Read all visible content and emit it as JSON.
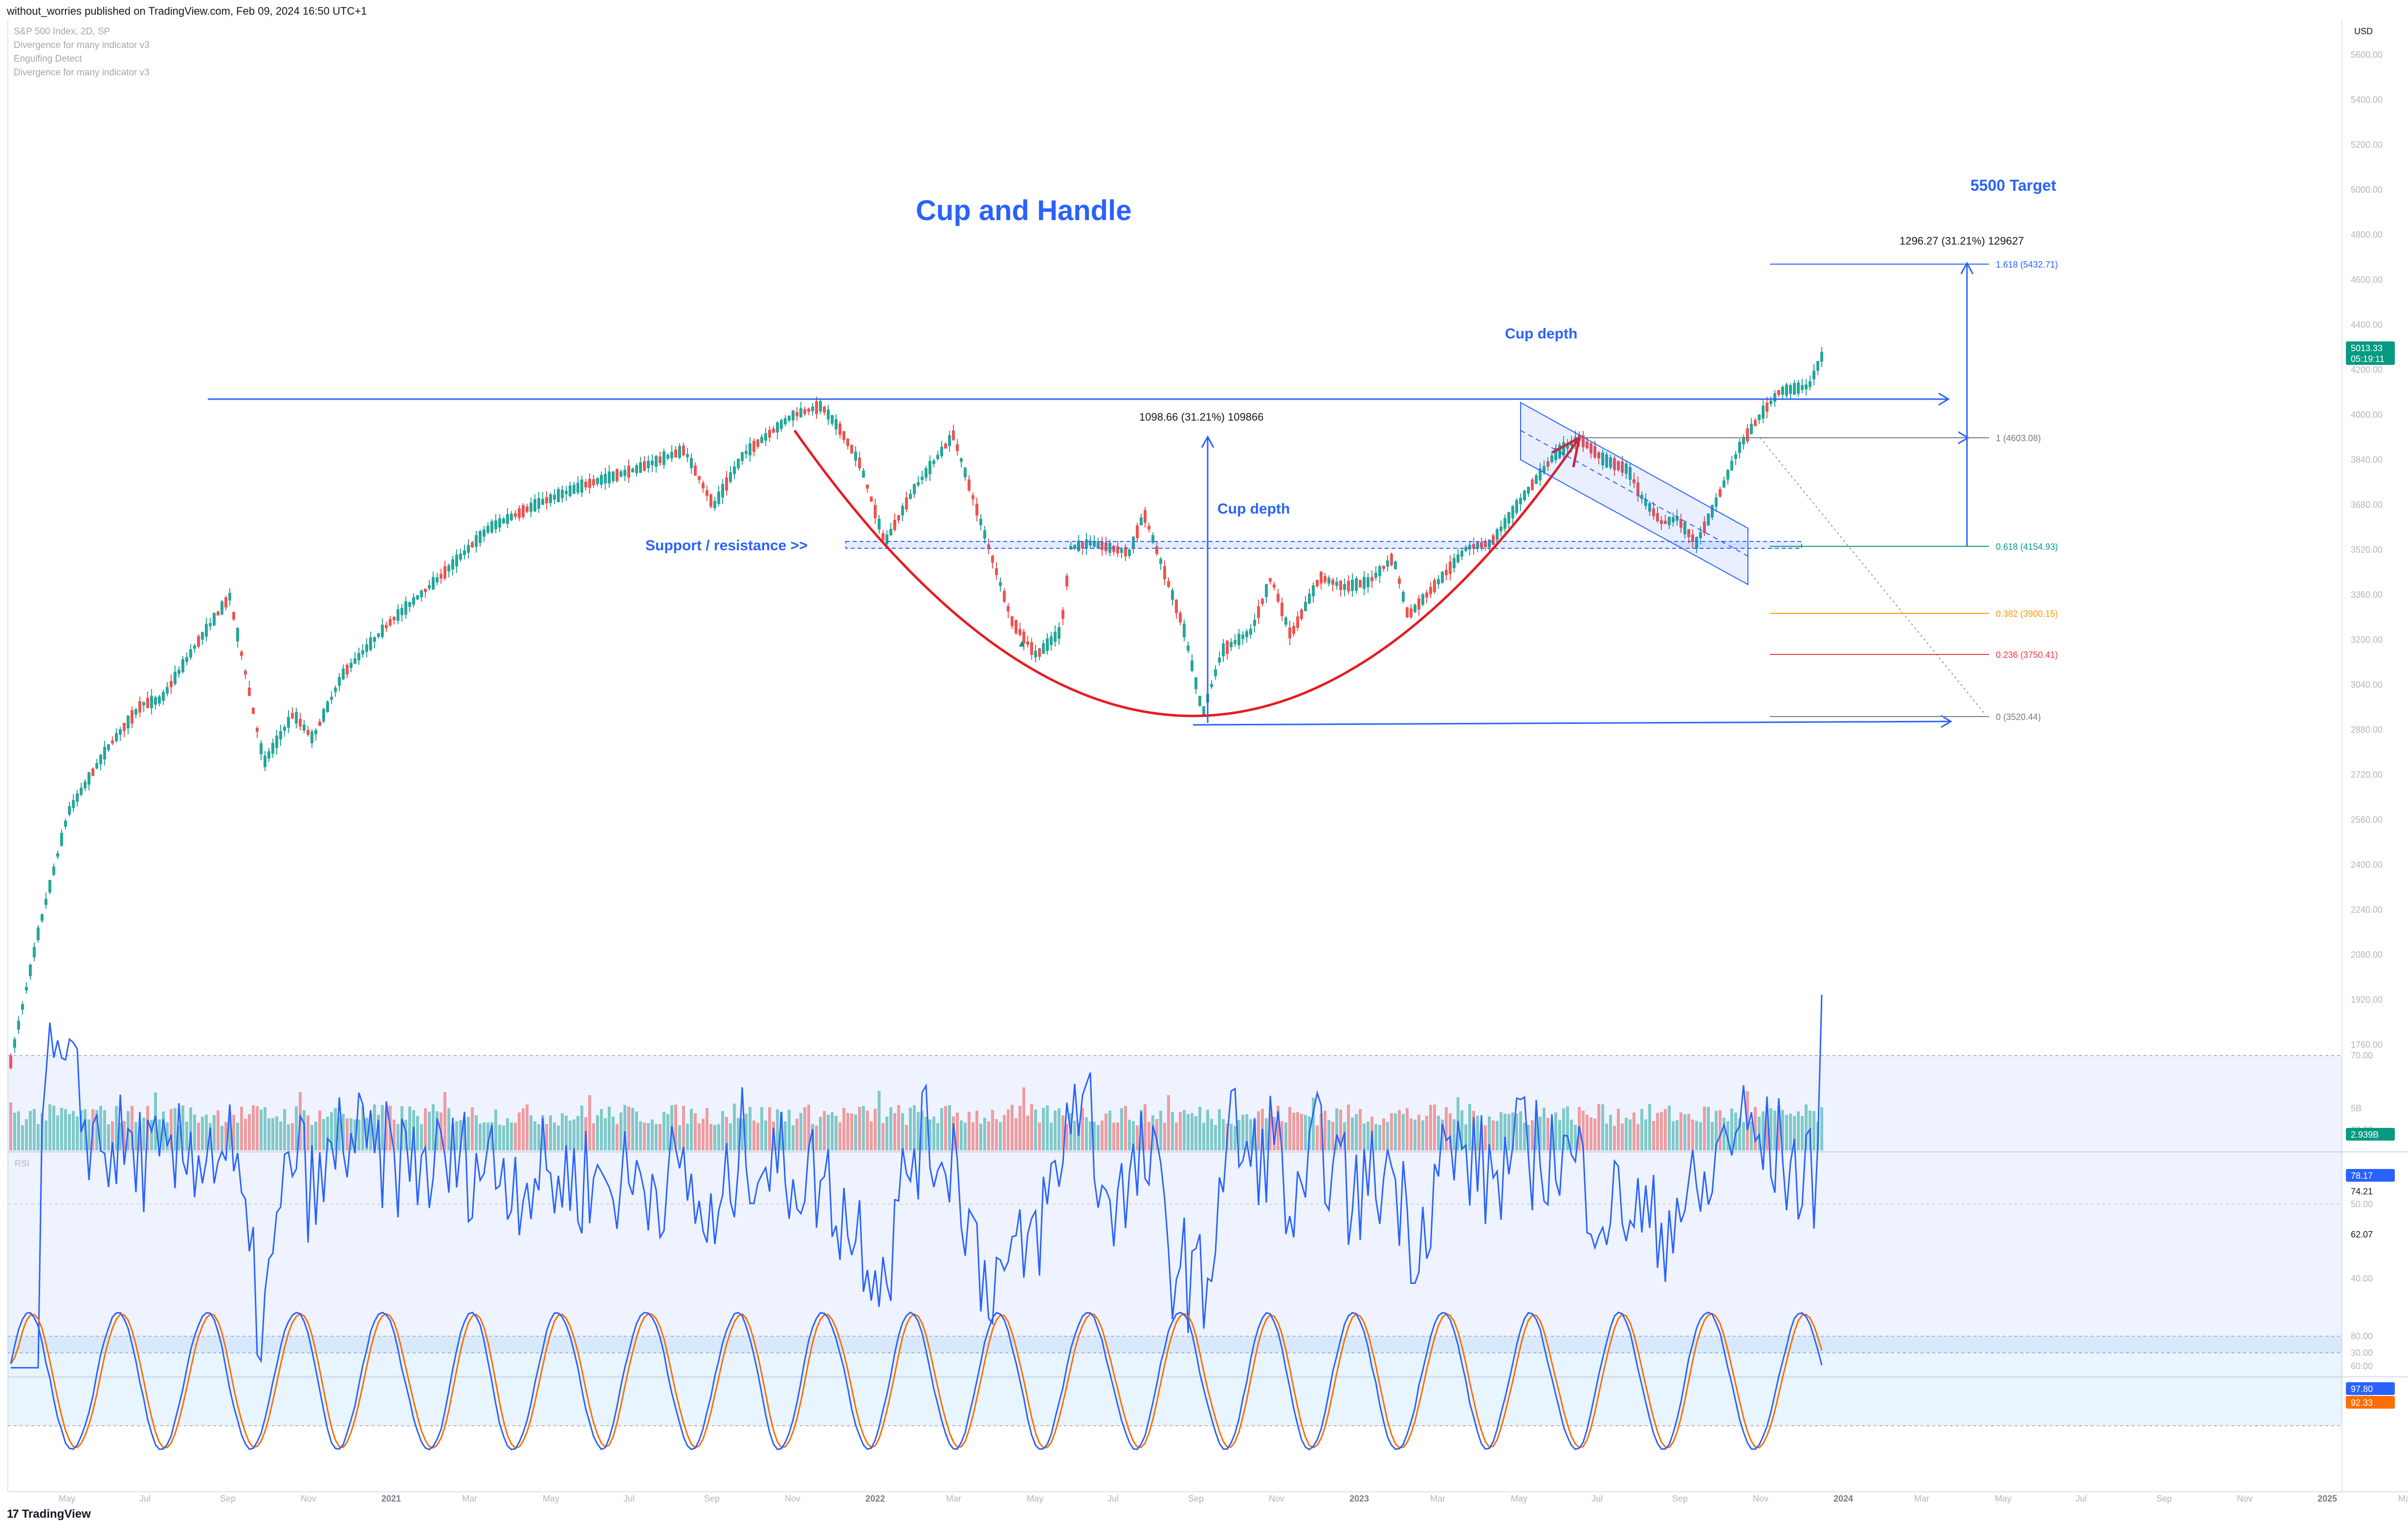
{
  "header": {
    "published": "without_worries published on TradingView.com, Feb 09, 2024 16:50 UTC+1"
  },
  "indicators": [
    "S&P 500 Index, 2D, SP",
    "Divergence for many indicator v3",
    "Engulfing Detect",
    "Divergence for many indicator v3"
  ],
  "footer": {
    "brand": "TradingView",
    "logo": "17"
  },
  "colors": {
    "up": "#26a69a",
    "down": "#ef5350",
    "blue": "#2962ff",
    "cup": "#e51c23",
    "rsi": "#2962ff",
    "stoch_k": "#2962ff",
    "stoch_d": "#ff6d00"
  },
  "annotations": {
    "title": "Cup and Handle",
    "target": "5500 Target",
    "cup_depth_1": "Cup depth",
    "cup_depth_2": "Cup depth",
    "support": "Support / resistance >>",
    "measure_1": "1098.66 (31.21%) 109866",
    "measure_2": "1296.27 (31.21%) 129627"
  },
  "price_scale": {
    "currency": "USD",
    "last_price": "5013.33",
    "countdown": "05:19:11",
    "volume_last": "2.939B",
    "rsi_last": "78.17",
    "rsi_ma": "74.21",
    "rsi_mid": "62.07",
    "stoch_k_last": "97.80",
    "stoch_d_last": "92.33",
    "ticks": [
      "5600.00",
      "5400.00",
      "5200.00",
      "5000.00",
      "4800.00",
      "4600.00",
      "4400.00",
      "4200.00",
      "4000.00",
      "3840.00",
      "3680.00",
      "3520.00",
      "3360.00",
      "3200.00",
      "3040.00",
      "2880.00",
      "2720.00",
      "2560.00",
      "2400.00",
      "2240.00",
      "2080.00",
      "1920.00",
      "1760.00"
    ]
  },
  "fib_levels": [
    {
      "label": "1.618 (5432.71)",
      "color": "#2962ff"
    },
    {
      "label": "1 (4603.08)",
      "color": "#787b86"
    },
    {
      "label": "0.618 (4154.93)",
      "color": "#089981"
    },
    {
      "label": "0.382 (3900.15)",
      "color": "#ff9800"
    },
    {
      "label": "0.236 (3750.41)",
      "color": "#f23645"
    },
    {
      "label": "0 (3520.44)",
      "color": "#787b86"
    }
  ],
  "time_axis": [
    "May",
    "Jul",
    "Sep",
    "Nov",
    "2021",
    "Mar",
    "May",
    "Jul",
    "Sep",
    "Nov",
    "2022",
    "Mar",
    "May",
    "Jul",
    "Sep",
    "Nov",
    "2023",
    "Mar",
    "May",
    "Jul",
    "Sep",
    "Nov",
    "2024",
    "Mar",
    "May",
    "Jul",
    "Sep",
    "Nov",
    "2025",
    "Mar"
  ],
  "rsi_ticks": [
    "70.00",
    "60.00",
    "50.00",
    "40.00",
    "30.00"
  ],
  "stoch_ticks": [
    "80.00",
    "60.00",
    "40.00"
  ],
  "chart_data": {
    "type": "candlestick",
    "title": "S&P 500 Index, 2D, SP",
    "y_axis": "USD",
    "price_path": [
      {
        "t": "2020-04",
        "p": 2480
      },
      {
        "t": "2020-06",
        "p": 3100
      },
      {
        "t": "2020-08",
        "p": 3350
      },
      {
        "t": "2020-10",
        "p": 3300
      },
      {
        "t": "2020-11",
        "p": 3620
      },
      {
        "t": "2021-01",
        "p": 3750
      },
      {
        "t": "2021-04",
        "p": 4150
      },
      {
        "t": "2021-06",
        "p": 4290
      },
      {
        "t": "2021-09",
        "p": 4530
      },
      {
        "t": "2021-10",
        "p": 4330
      },
      {
        "t": "2022-01",
        "p": 4800
      },
      {
        "t": "2022-02",
        "p": 4300
      },
      {
        "t": "2022-03",
        "p": 4170
      },
      {
        "t": "2022-03b",
        "p": 4610
      },
      {
        "t": "2022-06",
        "p": 3670
      },
      {
        "t": "2022-08",
        "p": 4305
      },
      {
        "t": "2022-10",
        "p": 3577
      },
      {
        "t": "2022-12",
        "p": 4080
      },
      {
        "t": "2023-03",
        "p": 3860
      },
      {
        "t": "2023-05",
        "p": 4180
      },
      {
        "t": "2023-07",
        "p": 4590
      },
      {
        "t": "2023-10",
        "p": 4117
      },
      {
        "t": "2023-12",
        "p": 4770
      },
      {
        "t": "2024-02",
        "p": 5013
      }
    ],
    "cup": {
      "left_rim": 4800,
      "bottom": 3520.44,
      "right_rim": 4603.08,
      "depth_pct": 31.21
    },
    "resistance": 4800,
    "support_zone": 4154.93,
    "target": 5500
  }
}
